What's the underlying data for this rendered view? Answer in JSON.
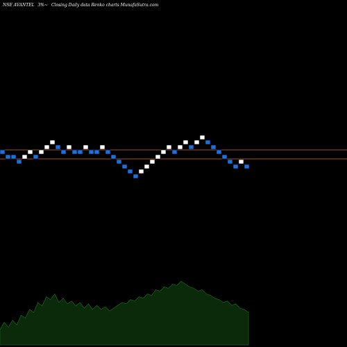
{
  "header": {
    "symbol": "NSE AVANTEL",
    "change": "3%~",
    "description": "Closing Daily data  Renko  charts MunafaSutra.com"
  },
  "colors": {
    "background": "#000000",
    "up_brick": "#ffffff",
    "down_brick": "#1e6fe0",
    "brick_border": "#000000",
    "reference_line": "#a0522d",
    "volume_fill": "#0a2a0a",
    "volume_line": "#1c5a1c",
    "text": "#ffffff"
  },
  "chart_data": {
    "type": "renko",
    "title": "NSE AVANTEL 3%~ Closing Daily data Renko charts MunafaSutra.com",
    "brick_levels": [
      0,
      -1,
      -1,
      -2,
      -1,
      0,
      -1,
      0,
      1,
      2,
      1,
      0,
      1,
      0,
      0,
      1,
      0,
      0,
      1,
      0,
      -1,
      -2,
      -3,
      -4,
      -5,
      -4,
      -3,
      -2,
      -1,
      0,
      1,
      0,
      1,
      2,
      1,
      2,
      3,
      2,
      1,
      0,
      -1,
      -2,
      -3,
      -2,
      -3
    ],
    "brick_direction": [
      "down",
      "down",
      "down",
      "down",
      "up",
      "up",
      "down",
      "up",
      "up",
      "up",
      "down",
      "down",
      "up",
      "down",
      "down",
      "up",
      "down",
      "down",
      "up",
      "down",
      "down",
      "down",
      "down",
      "down",
      "down",
      "up",
      "up",
      "up",
      "up",
      "up",
      "up",
      "down",
      "up",
      "up",
      "down",
      "up",
      "up",
      "down",
      "down",
      "down",
      "down",
      "down",
      "down",
      "up",
      "down"
    ],
    "reference_lines": [
      0,
      -2
    ],
    "volume_profile": [
      0.22,
      0.32,
      0.25,
      0.35,
      0.28,
      0.42,
      0.38,
      0.5,
      0.46,
      0.6,
      0.55,
      0.68,
      0.64,
      0.72,
      0.6,
      0.66,
      0.58,
      0.62,
      0.55,
      0.6,
      0.52,
      0.58,
      0.5,
      0.56,
      0.5,
      0.54,
      0.48,
      0.52,
      0.56,
      0.6,
      0.58,
      0.64,
      0.62,
      0.68,
      0.66,
      0.72,
      0.7,
      0.78,
      0.76,
      0.82,
      0.8,
      0.86,
      0.84,
      0.9,
      0.86,
      0.82,
      0.8,
      0.76,
      0.78,
      0.72,
      0.7,
      0.66,
      0.64,
      0.6,
      0.62,
      0.56,
      0.58,
      0.52,
      0.5,
      0.46
    ]
  }
}
